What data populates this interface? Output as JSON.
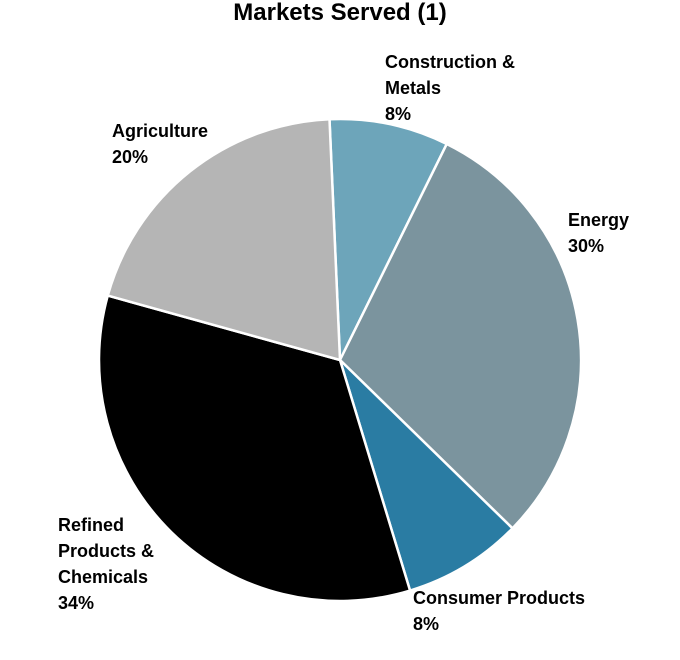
{
  "chart_data": {
    "type": "pie",
    "title": "Markets Served (1)",
    "slices": [
      {
        "name": "Construction & Metals",
        "label_lines": [
          "Construction &",
          "Metals"
        ],
        "value": 8,
        "value_label": "8%",
        "color": "#6da5ba"
      },
      {
        "name": "Energy",
        "label_lines": [
          "Energy"
        ],
        "value": 30,
        "value_label": "30%",
        "color": "#7b949e"
      },
      {
        "name": "Consumer Products",
        "label_lines": [
          "Consumer Products"
        ],
        "value": 8,
        "value_label": "8%",
        "color": "#2a7ca3"
      },
      {
        "name": "Refined Products & Chemicals",
        "label_lines": [
          "Refined",
          "Products &",
          "Chemicals"
        ],
        "value": 34,
        "value_label": "34%",
        "color": "#000000"
      },
      {
        "name": "Agriculture",
        "label_lines": [
          "Agriculture"
        ],
        "value": 20,
        "value_label": "20%",
        "color": "#b5b5b5"
      }
    ]
  }
}
